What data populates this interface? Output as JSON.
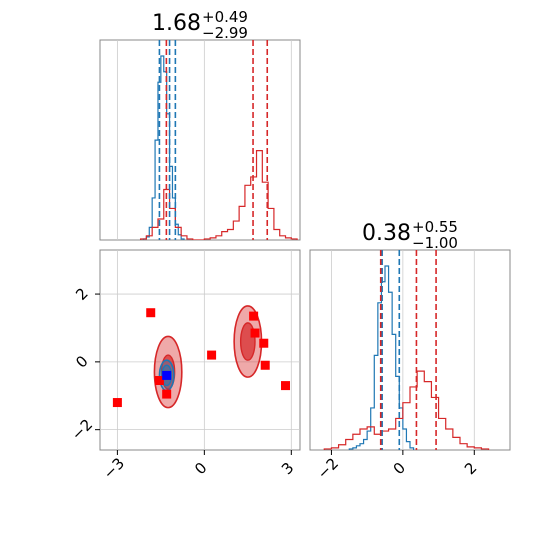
{
  "chart_data": [
    {
      "type": "histogram",
      "title": {
        "value": "1.68",
        "upper": "+0.49",
        "lower": "−2.99"
      },
      "xlim": [
        -3.6,
        3.3
      ],
      "grid": true,
      "series": [
        {
          "color": "#1f77b4",
          "bin_edges": [
            -2.1,
            -2.0,
            -1.9,
            -1.8,
            -1.7,
            -1.6,
            -1.5,
            -1.4,
            -1.3,
            -1.2,
            -1.1,
            -1.0,
            -0.9,
            -0.8,
            -0.7
          ],
          "counts": [
            1,
            3,
            12,
            40,
            95,
            150,
            175,
            160,
            120,
            70,
            40,
            15,
            5,
            1
          ],
          "quantiles": [
            -1.55,
            -1.2,
            -1.0
          ]
        },
        {
          "color": "#d62728",
          "bin_edges": [
            -2.2,
            -2.0,
            -1.8,
            -1.6,
            -1.4,
            -1.2,
            -1.0,
            -0.8,
            -0.6,
            -0.4,
            -0.2,
            0,
            0.2,
            0.4,
            0.6,
            0.8,
            1.0,
            1.2,
            1.4,
            1.6,
            1.8,
            2.0,
            2.2,
            2.4,
            2.6,
            2.8,
            3.0,
            3.2
          ],
          "counts": [
            1,
            4,
            12,
            20,
            48,
            30,
            12,
            4,
            1,
            0,
            0,
            1,
            2,
            4,
            8,
            10,
            18,
            32,
            52,
            60,
            85,
            55,
            30,
            10,
            4,
            2,
            1
          ],
          "quantiles": [
            -1.31,
            1.68,
            2.17
          ]
        }
      ]
    },
    {
      "type": "scatter",
      "xlim": [
        -3.6,
        3.3
      ],
      "ylim": [
        -2.6,
        3.3
      ],
      "xticks": [
        "−3",
        "0",
        "3"
      ],
      "yticks": [
        "−2",
        "0",
        "2"
      ],
      "grid": true,
      "contours": [
        {
          "color": "#d62728",
          "center": [
            -1.25,
            -0.3
          ],
          "radii": [
            0.5,
            1.05
          ]
        },
        {
          "color": "#d62728",
          "center": [
            1.5,
            0.6
          ],
          "radii": [
            0.55,
            1.05
          ]
        },
        {
          "color": "#1f77b4",
          "center": [
            -1.3,
            -0.4
          ],
          "radii": [
            0.3,
            0.45
          ]
        }
      ],
      "points": {
        "color": "#ff0000",
        "x": [
          -1.85,
          -1.55,
          0.25,
          1.7,
          1.75,
          2.05,
          2.1,
          2.8,
          -3.0,
          -1.3
        ],
        "y": [
          1.45,
          -0.55,
          0.2,
          1.35,
          0.85,
          0.55,
          -0.1,
          -0.7,
          -1.2,
          -0.95
        ]
      },
      "highlight_point": {
        "color": "#0000ff",
        "x": -1.3,
        "y": -0.4
      }
    },
    {
      "type": "histogram",
      "title": {
        "value": "0.38",
        "upper": "+0.55",
        "lower": "−1.00"
      },
      "xlim": [
        -2.6,
        3.0
      ],
      "xticks": [
        "−2",
        "0",
        "2"
      ],
      "grid": true,
      "series": [
        {
          "color": "#1f77b4",
          "bin_edges": [
            -1.5,
            -1.4,
            -1.3,
            -1.2,
            -1.1,
            -1.0,
            -0.9,
            -0.8,
            -0.7,
            -0.6,
            -0.5,
            -0.4,
            -0.3,
            -0.2,
            -0.1,
            0,
            0.1,
            0.2,
            0.3
          ],
          "counts": [
            1,
            2,
            4,
            6,
            10,
            18,
            40,
            90,
            140,
            160,
            175,
            150,
            110,
            70,
            40,
            20,
            8,
            2
          ],
          "quantiles": [
            -0.58,
            -0.1
          ]
        },
        {
          "color": "#d62728",
          "bin_edges": [
            -2.2,
            -2.0,
            -1.8,
            -1.6,
            -1.4,
            -1.2,
            -1.0,
            -0.8,
            -0.6,
            -0.4,
            -0.2,
            0,
            0.2,
            0.4,
            0.6,
            0.8,
            1.0,
            1.2,
            1.4,
            1.6,
            1.8,
            2.0,
            2.2,
            2.4
          ],
          "counts": [
            1,
            2,
            5,
            10,
            15,
            20,
            22,
            15,
            18,
            20,
            30,
            45,
            60,
            75,
            65,
            50,
            30,
            20,
            12,
            6,
            3,
            2,
            1
          ],
          "quantiles": [
            -0.62,
            0.38,
            0.93
          ]
        }
      ]
    }
  ]
}
